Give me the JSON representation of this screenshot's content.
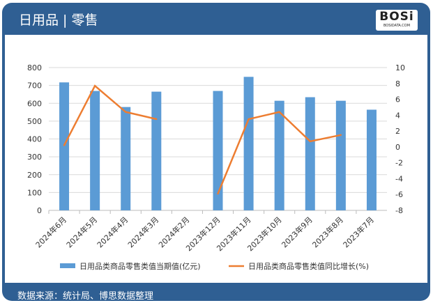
{
  "header": {
    "title": "日用品 | 零售",
    "logo_text": "BOSi",
    "logo_sub": "BOSIDATA.COM"
  },
  "footer": {
    "source": "数据来源：统计局、博思数据整理"
  },
  "colors": {
    "bar": "#5b9bd5",
    "line": "#ed7d31",
    "header": "#2f5f93"
  },
  "chart_data": {
    "type": "bar+line",
    "categories": [
      "2024年6月",
      "2024年5月",
      "2024年4月",
      "2024年3月",
      "2024年2月",
      "2023年12月",
      "2023年11月",
      "2023年10月",
      "2023年9月",
      "2023年8月",
      "2023年7月"
    ],
    "series": [
      {
        "name": "日用品类商品零售类值当期值(亿元)",
        "type": "bar",
        "axis": "left",
        "values": [
          717,
          669,
          579,
          665,
          null,
          669,
          748,
          614,
          634,
          614,
          564
        ]
      },
      {
        "name": "日用品类商品零售类值同比增长(%)",
        "type": "line",
        "axis": "right",
        "values": [
          0.2,
          7.7,
          4.4,
          3.5,
          null,
          -5.9,
          3.5,
          4.4,
          0.7,
          1.5,
          null
        ]
      }
    ],
    "ylim_left": [
      0,
      800
    ],
    "yticks_left": [
      0,
      100,
      200,
      300,
      400,
      500,
      600,
      700,
      800
    ],
    "ylim_right": [
      -8,
      10
    ],
    "yticks_right": [
      -8,
      -6,
      -4,
      -2,
      0,
      2,
      4,
      6,
      8,
      10
    ],
    "grid": true,
    "legend": "bottom"
  }
}
